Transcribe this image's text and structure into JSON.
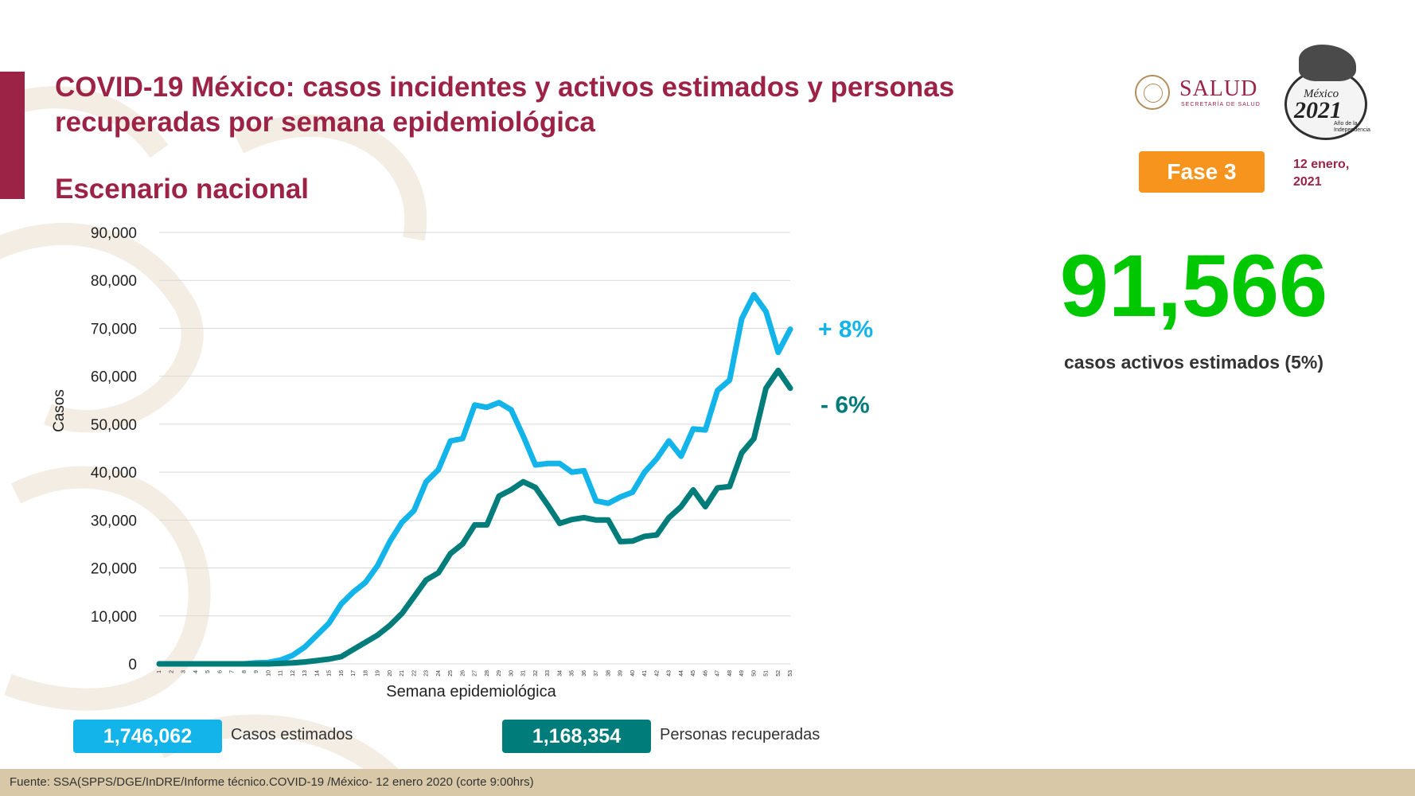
{
  "header": {
    "title": "COVID-19 México: casos incidentes y activos estimados y personas recuperadas por semana epidemiológica",
    "subtitle": "Escenario nacional"
  },
  "logos": {
    "salud_text": "SALUD",
    "salud_sub": "SECRETARÍA DE SALUD",
    "mexico2021_line1": "México",
    "mexico2021_line2": "2021",
    "mexico2021_line3": "Año de la Independencia"
  },
  "badge": {
    "label": "Fase 3"
  },
  "date": {
    "line1": "12 enero,",
    "line2": "2021"
  },
  "highlight": {
    "value": "91,566",
    "label": "casos activos estimados (5%)"
  },
  "legend": {
    "casos_value": "1,746,062",
    "casos_label": "Casos estimados",
    "recup_value": "1,168,354",
    "recup_label": "Personas recuperadas"
  },
  "footer": {
    "source": "Fuente: SSA(SPPS/DGE/InDRE/Informe técnico.COVID-19 /México- 12 enero 2020 (corte 9:00hrs)"
  },
  "colors": {
    "casos": "#12b4ea",
    "recuperadas": "#007c7a",
    "brand": "#9c2246",
    "active": "#00c800",
    "fase": "#f7941d"
  },
  "chart_data": {
    "type": "line",
    "xlabel": "Semana epidemiológica",
    "ylabel": "Casos",
    "ylim": [
      0,
      90000
    ],
    "yticks": [
      0,
      10000,
      20000,
      30000,
      40000,
      50000,
      60000,
      70000,
      80000,
      90000
    ],
    "ytick_labels": [
      "0",
      "10,000",
      "20,000",
      "30,000",
      "40,000",
      "50,000",
      "60,000",
      "70,000",
      "80,000",
      "90,000"
    ],
    "grid": true,
    "x": [
      "1",
      "2",
      "3",
      "4",
      "5",
      "6",
      "7",
      "8",
      "9",
      "10",
      "11",
      "12",
      "13",
      "14",
      "15",
      "16",
      "17",
      "18",
      "19",
      "20",
      "21",
      "22",
      "23",
      "24",
      "25",
      "26",
      "27",
      "28",
      "29",
      "30",
      "31",
      "32",
      "33",
      "34",
      "35",
      "36",
      "37",
      "38",
      "39",
      "40",
      "41",
      "42",
      "43",
      "44",
      "45",
      "46",
      "47",
      "48",
      "49",
      "50",
      "51",
      "52",
      "53"
    ],
    "series": [
      {
        "name": "Casos estimados",
        "end_label": "+ 8%",
        "values": [
          0,
          0,
          0,
          0,
          0,
          0,
          0,
          0,
          200,
          300,
          800,
          1800,
          3500,
          6000,
          8500,
          12500,
          15000,
          17000,
          20500,
          25500,
          29500,
          32000,
          38000,
          40500,
          46500,
          47000,
          54000,
          53500,
          54500,
          53000,
          47500,
          41500,
          41800,
          41800,
          40000,
          40300,
          34000,
          33500,
          34800,
          35800,
          40000,
          42800,
          46500,
          43300,
          49000,
          48800,
          57000,
          59200,
          72000,
          77000,
          73500,
          65000,
          69800
        ]
      },
      {
        "name": "Personas recuperadas",
        "end_label": "- 6%",
        "values": [
          0,
          0,
          0,
          0,
          0,
          0,
          0,
          0,
          0,
          0,
          100,
          200,
          400,
          700,
          1000,
          1500,
          3000,
          4500,
          6000,
          8000,
          10500,
          14000,
          17500,
          19000,
          23000,
          25000,
          29000,
          29000,
          35000,
          36300,
          38000,
          36800,
          33200,
          29300,
          30100,
          30500,
          30000,
          30000,
          25500,
          25600,
          26600,
          26900,
          30500,
          32800,
          36300,
          32800,
          36700,
          37000,
          44000,
          47000,
          57500,
          61200,
          57500
        ]
      }
    ]
  }
}
